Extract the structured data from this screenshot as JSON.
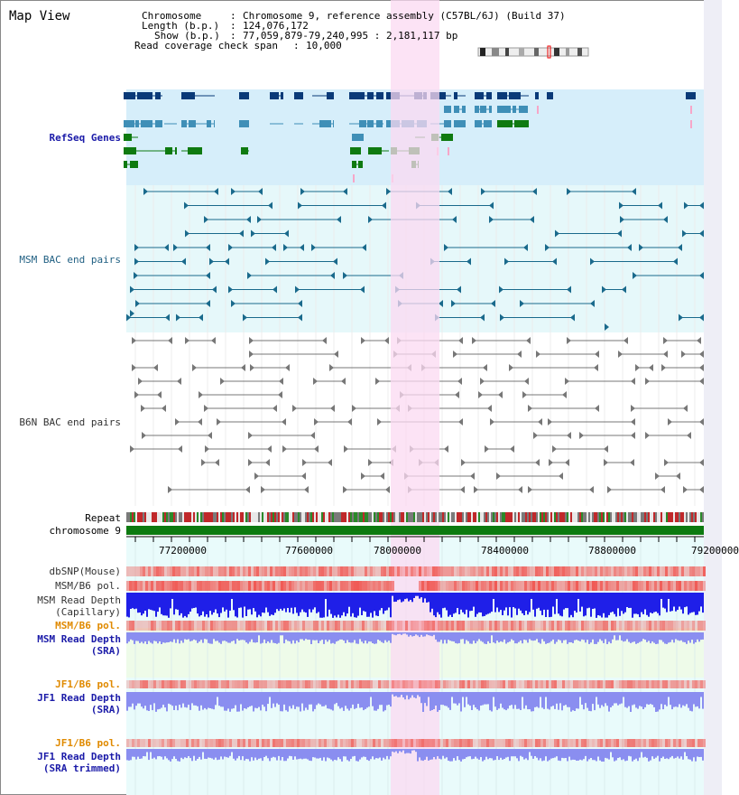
{
  "view": {
    "title": "Map View",
    "chromosome_label": "Chromosome",
    "chromosome_value": "Chromosome 9, reference assembly (C57BL/6J) (Build 37)",
    "length_label": "Length (b.p.)",
    "length_value": "124,076,172",
    "show_label": "Show (b.p.)",
    "show_value": "77,059,879-79,240,995 : 2,181,117 bp",
    "coverage_label": "Read coverage check span",
    "coverage_value": "10,000"
  },
  "tracks": {
    "refseq": "RefSeq Genes",
    "msm_bac": "MSM BAC end pairs",
    "b6n_bac": "B6N BAC end pairs",
    "repeat": "Repeat",
    "chromosome": "chromosome 9",
    "dbsnp": "dbSNP(Mouse)",
    "msm_b6_pol_1": "MSM/B6 pol.",
    "msm_read_depth_cap_1": "MSM Read Depth",
    "msm_read_depth_cap_2": "(Capillary)",
    "msm_b6_pol_2": "MSM/B6 pol.",
    "msm_read_depth_sra_1": "MSM Read Depth",
    "msm_read_depth_sra_2": "(SRA)",
    "jf1_b6_pol_1": "JF1/B6 pol.",
    "jf1_read_depth_sra_1": "JF1 Read Depth",
    "jf1_read_depth_sra_2": "(SRA)",
    "jf1_b6_pol_2": "JF1/B6 pol.",
    "jf1_read_depth_trim_1": "JF1 Read Depth",
    "jf1_read_depth_trim_2": "(SRA trimmed)"
  },
  "axis": {
    "ticks": [
      "77200000",
      "77600000",
      "78000000",
      "78400000",
      "78800000",
      "79200000"
    ]
  },
  "colors": {
    "refseq_bg": "#d6eefa",
    "msm_bg": "#e6f8fa",
    "b6n_bg": "#ffffff",
    "highlight": "#fbd9f2",
    "dark_gene": "#0a3a78",
    "mid_gene": "#3f8fb7",
    "green_gene": "#0f7a10",
    "bac_msm": "#1a6a8c",
    "bac_b6n": "#777777",
    "chrom_bar": "#0d7a10",
    "depth_blue": "#1f1fe8",
    "depth_light": "#8a8ef0",
    "snp_red": "#f05a55"
  }
}
